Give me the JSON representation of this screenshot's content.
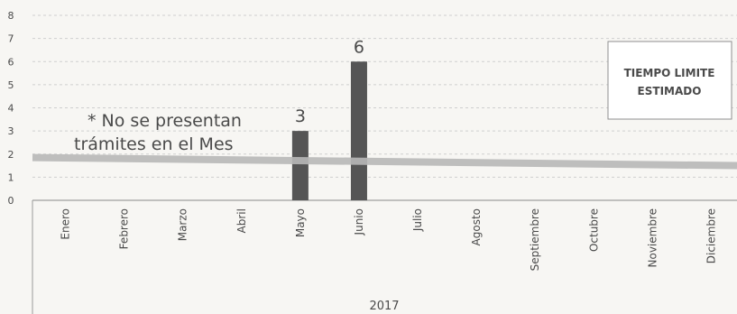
{
  "chart_data": {
    "type": "bar",
    "categories": [
      "Enero",
      "Febrero",
      "Marzo",
      "Abril",
      "Mayo",
      "Junio",
      "Julio",
      "Agosto",
      "Septiembre",
      "Octubre",
      "Noviembre",
      "Diciembre"
    ],
    "values": [
      0,
      0,
      0,
      0,
      3,
      6,
      0,
      0,
      0,
      0,
      0,
      0
    ],
    "data_labels": [
      "",
      "",
      "",
      "",
      "3",
      "6",
      "",
      "",
      "",
      "",
      "",
      ""
    ],
    "y_ticks": [
      "0",
      "1",
      "2",
      "3",
      "4",
      "5",
      "6",
      "7",
      "8"
    ],
    "ylim": [
      0,
      8
    ],
    "group_label": "2017",
    "reference_line": {
      "label": "TIEMPO LIMITE ESTIMADO",
      "label_line1": "TIEMPO LIMITE",
      "label_line2": "ESTIMADO",
      "y_start": 1.85,
      "y_end": 1.5
    },
    "annotation": {
      "line1": "* No se presentan",
      "line2": "trámites en el Mes"
    },
    "grid": true,
    "bar_color": "#555555",
    "reference_color": "#b8b8b8"
  }
}
